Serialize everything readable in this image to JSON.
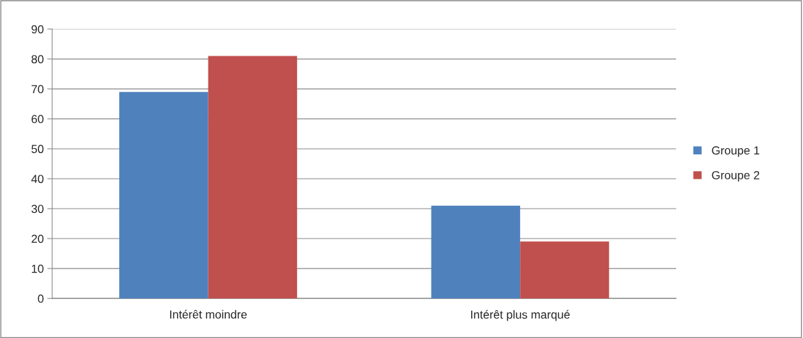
{
  "chart_data": {
    "type": "bar",
    "categories": [
      "Intérêt moindre",
      "Intérêt plus marqué"
    ],
    "series": [
      {
        "name": "Groupe 1",
        "color": "#4f81bd",
        "values": [
          69,
          31
        ]
      },
      {
        "name": "Groupe 2",
        "color": "#c0504d",
        "values": [
          81,
          19
        ]
      }
    ],
    "ylim": [
      0,
      90
    ],
    "yticks": [
      0,
      10,
      20,
      30,
      40,
      50,
      60,
      70,
      80,
      90
    ],
    "grid": "y",
    "legend": "right"
  }
}
